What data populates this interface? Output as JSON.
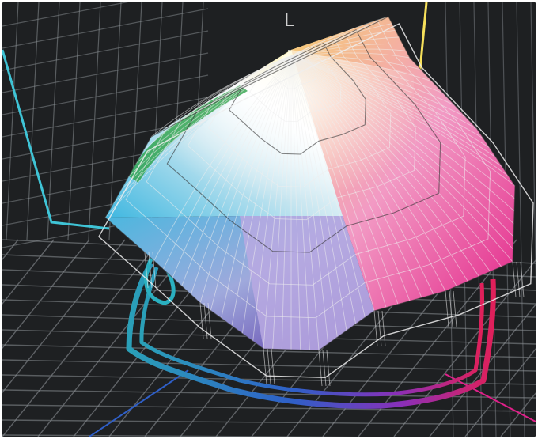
{
  "diagram": {
    "axis_label": "L",
    "colors": {
      "background": "#1e2022",
      "grid": "#8a8f94",
      "wireframe": "#efefef",
      "cyan": "#3fc4d6",
      "yellow": "#f6e05a",
      "magenta": "#e0208a",
      "blue": "#2f5fc8",
      "green": "#2fa34a",
      "white": "#ffffff"
    }
  }
}
